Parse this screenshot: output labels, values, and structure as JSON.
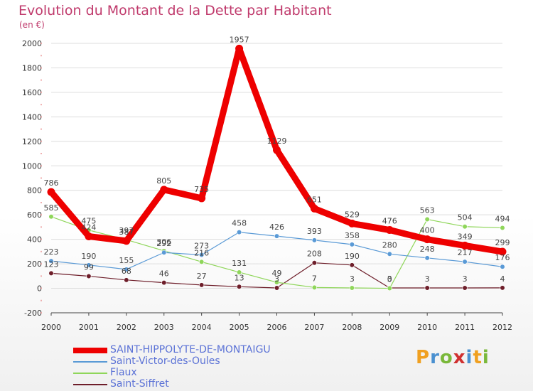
{
  "chart_data": {
    "type": "line",
    "title": "Evolution du Montant de la Dette par Habitant",
    "subtitle": "(en €)",
    "xlabel": "",
    "ylabel": "",
    "ylim": [
      -200,
      2000
    ],
    "yticks": [
      "-200",
      "0",
      "200",
      "400",
      "600",
      "800",
      "1000",
      "1200",
      "1400",
      "1600",
      "1800",
      "2000"
    ],
    "ytick_values": [
      -200,
      0,
      200,
      400,
      600,
      800,
      1000,
      1200,
      1400,
      1600,
      1800,
      2000
    ],
    "categories": [
      "2000",
      "2001",
      "2002",
      "2003",
      "2004",
      "2005",
      "2006",
      "2007",
      "2008",
      "2009",
      "2010",
      "2011",
      "2012"
    ],
    "series": [
      {
        "name": "Saint-Siffret",
        "color": "#6e1e2a",
        "values": [
          123,
          99,
          68,
          46,
          27,
          13,
          3,
          208,
          190,
          3,
          3,
          3,
          4
        ],
        "labels": [
          "123",
          "99",
          "68",
          "46",
          "27",
          "13",
          "3",
          "208",
          "190",
          "3",
          "3",
          "3",
          "4"
        ]
      },
      {
        "name": "Flaux",
        "color": "#8fd65a",
        "values": [
          585,
          475,
          397,
          306,
          216,
          131,
          49,
          7,
          3,
          0,
          563,
          504,
          494
        ],
        "labels": [
          "585",
          "475",
          "397",
          "306",
          "216",
          "131",
          "49",
          "7",
          "3",
          "0",
          "563",
          "504",
          "494"
        ]
      },
      {
        "name": "Saint-Victor-des-Oules",
        "color": "#5a9ad6",
        "values": [
          223,
          190,
          155,
          292,
          273,
          458,
          426,
          393,
          358,
          280,
          248,
          217,
          176
        ],
        "labels": [
          "223",
          "190",
          "155",
          "292",
          "273",
          "458",
          "426",
          "393",
          "358",
          "280",
          "248",
          "217",
          "176"
        ]
      },
      {
        "name": "SAINT-HIPPOLYTE-DE-MONTAIGU",
        "color": "#ee0000",
        "values": [
          786,
          424,
          387,
          805,
          735,
          1957,
          1129,
          651,
          529,
          476,
          400,
          349,
          299
        ],
        "labels": [
          "786",
          "424",
          "387",
          "805",
          "735",
          "1957",
          "1129",
          "651",
          "529",
          "476",
          "400",
          "349",
          "299"
        ]
      }
    ],
    "legend": {
      "position": "bottom-left",
      "items": [
        {
          "name": "SAINT-HIPPOLYTE-DE-MONTAIGU",
          "color": "#ee0000",
          "style": "thick"
        },
        {
          "name": "Saint-Victor-des-Oules",
          "color": "#5a9ad6",
          "style": "thin"
        },
        {
          "name": "Flaux",
          "color": "#8fd65a",
          "style": "thin"
        },
        {
          "name": "Saint-Siffret",
          "color": "#6e1e2a",
          "style": "thin"
        }
      ]
    }
  },
  "logo": {
    "letters": [
      "P",
      "r",
      "o",
      "x",
      "i",
      "t",
      "i"
    ],
    "colors": [
      "#f0a020",
      "#4a90d0",
      "#7ab83a",
      "#d03030",
      "#4a90d0",
      "#f0a020",
      "#7ab83a"
    ]
  }
}
